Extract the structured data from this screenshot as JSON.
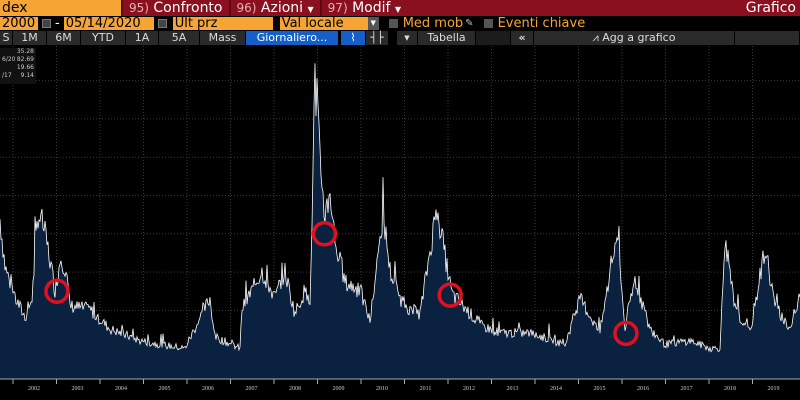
{
  "header": {
    "ticker_field": "dex",
    "buttons": [
      {
        "num": "95)",
        "label": "Confronto"
      },
      {
        "num": "96)",
        "label": "Azioni",
        "dropdown": true
      },
      {
        "num": "97)",
        "label": "Modif",
        "dropdown": true
      }
    ],
    "title": "Grafico"
  },
  "toolbar": {
    "start_date": "2000",
    "date_sep": "-",
    "end_date": "05/14/2020",
    "field": "Ult prz",
    "currency": "Val locale",
    "moving_avg": "Med mob",
    "key_events": "Eventi chiave"
  },
  "range_tabs": [
    {
      "label": "S"
    },
    {
      "label": "1M"
    },
    {
      "label": "6M"
    },
    {
      "label": "YTD"
    },
    {
      "label": "1A"
    },
    {
      "label": "5A"
    },
    {
      "label": "Mass"
    },
    {
      "label": "Giornaliero...",
      "active": true
    }
  ],
  "chart_tools": {
    "table": "Tabella",
    "collapse": "«",
    "add_to_chart": "Agg a grafico"
  },
  "legend": [
    {
      "label": "",
      "value": "35.28"
    },
    {
      "label": "6/20",
      "value": "82.69"
    },
    {
      "label": "",
      "value": "19.66"
    },
    {
      "label": "/17",
      "value": "9.14"
    }
  ],
  "colors": {
    "header_red": "#8a1020",
    "field_orange": "#f6a433",
    "area_fill": "#0b2140",
    "line": "#ffffff",
    "annotation": "#e01020",
    "active_tab": "#1560c8"
  },
  "chart_data": {
    "type": "area",
    "xlabel": "",
    "ylabel": "",
    "ylim": [
      0,
      80
    ],
    "grid": true,
    "x_ticks": [
      "2002",
      "2003",
      "2004",
      "2005",
      "2006",
      "2007",
      "2008",
      "2009",
      "2010",
      "2011",
      "2012",
      "2013",
      "2014",
      "2015",
      "2016",
      "2017",
      "2018",
      "2019"
    ],
    "points": [
      [
        2001.7,
        43.6
      ],
      [
        2001.82,
        31
      ],
      [
        2002.05,
        23
      ],
      [
        2002.28,
        18
      ],
      [
        2002.44,
        23
      ],
      [
        2002.57,
        45
      ],
      [
        2002.69,
        42
      ],
      [
        2002.8,
        36
      ],
      [
        2002.97,
        25
      ],
      [
        2003.1,
        34
      ],
      [
        2003.22,
        30
      ],
      [
        2003.31,
        21
      ],
      [
        2003.77,
        20
      ],
      [
        2004.23,
        15
      ],
      [
        2004.92,
        12
      ],
      [
        2005.38,
        11
      ],
      [
        2005.95,
        10
      ],
      [
        2006.53,
        23
      ],
      [
        2006.64,
        13
      ],
      [
        2007.22,
        10
      ],
      [
        2007.26,
        20
      ],
      [
        2007.72,
        30
      ],
      [
        2008.02,
        23
      ],
      [
        2008.25,
        30
      ],
      [
        2008.48,
        19
      ],
      [
        2008.71,
        25
      ],
      [
        2008.83,
        21
      ],
      [
        2008.94,
        80
      ],
      [
        2009.06,
        59
      ],
      [
        2009.17,
        44
      ],
      [
        2009.29,
        51
      ],
      [
        2009.4,
        38
      ],
      [
        2009.63,
        27
      ],
      [
        2009.98,
        25
      ],
      [
        2010.21,
        17
      ],
      [
        2010.51,
        45
      ],
      [
        2010.67,
        30
      ],
      [
        2010.9,
        23
      ],
      [
        2011.13,
        20
      ],
      [
        2011.36,
        19
      ],
      [
        2011.75,
        47
      ],
      [
        2011.93,
        34
      ],
      [
        2012.09,
        24
      ],
      [
        2012.51,
        19
      ],
      [
        2012.74,
        16
      ],
      [
        2013.2,
        14
      ],
      [
        2013.89,
        14
      ],
      [
        2014.69,
        11
      ],
      [
        2015.03,
        23
      ],
      [
        2015.49,
        14
      ],
      [
        2015.89,
        40
      ],
      [
        2016.07,
        15
      ],
      [
        2016.3,
        28
      ],
      [
        2016.64,
        15
      ],
      [
        2016.99,
        11
      ],
      [
        2017.56,
        12
      ],
      [
        2018.02,
        10
      ],
      [
        2018.25,
        10
      ],
      [
        2018.37,
        37
      ],
      [
        2018.6,
        20
      ],
      [
        2018.94,
        14
      ],
      [
        2019.29,
        36
      ],
      [
        2019.52,
        21
      ],
      [
        2019.86,
        15
      ],
      [
        2020.09,
        23
      ]
    ],
    "annotations": [
      [
        2003.01,
        25
      ],
      [
        2009.16,
        40
      ],
      [
        2012.05,
        24
      ],
      [
        2016.09,
        14
      ]
    ]
  }
}
